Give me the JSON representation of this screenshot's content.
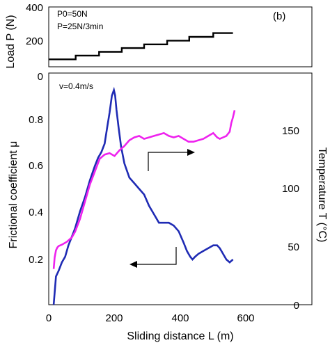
{
  "chart_data": [
    {
      "type": "line",
      "panel_label": "(b)",
      "ylabel": "Load P (N)",
      "ylim": [
        0,
        400
      ],
      "yticks": [
        "400",
        "200",
        "0"
      ],
      "xlim": [
        0,
        800
      ],
      "annotations": [
        "P0=50N",
        "P=25N/3min"
      ],
      "series": [
        {
          "color": "#000000",
          "x": [
            0,
            82,
            82,
            153,
            153,
            222,
            222,
            290,
            290,
            360,
            360,
            427,
            427,
            500,
            500,
            560
          ],
          "y": [
            50,
            50,
            75,
            75,
            100,
            100,
            125,
            125,
            150,
            150,
            175,
            175,
            200,
            200,
            225,
            225
          ]
        }
      ]
    },
    {
      "type": "line",
      "xlabel": "Sliding distance L (m)",
      "xlim": [
        0,
        800
      ],
      "xticks": [
        "0",
        "200",
        "400",
        "600"
      ],
      "ylabel_left": "Frictional coefficient μ",
      "ylim_left": [
        0.1,
        0.92
      ],
      "yticks_left": [
        "0.8",
        "0.6",
        "0.4",
        "0.2"
      ],
      "ylabel_right": "Temperature T (°C)",
      "ylim_right": [
        0,
        162
      ],
      "yticks_right": [
        "150",
        "100",
        "50",
        "0"
      ],
      "annotations": [
        "v=0.4m/s"
      ],
      "series": [
        {
          "axis": "left",
          "color": "#1f2bb4",
          "x": [
            15,
            22,
            30,
            40,
            50,
            60,
            70,
            80,
            95,
            110,
            125,
            140,
            150,
            160,
            170,
            178,
            185,
            192,
            198,
            202,
            206,
            212,
            220,
            230,
            245,
            260,
            275,
            290,
            305,
            320,
            335,
            350,
            365,
            380,
            395,
            410,
            420,
            430,
            437,
            445,
            455,
            470,
            485,
            500,
            512,
            520,
            530,
            540,
            550,
            560
          ],
          "y": [
            0.1,
            0.2,
            0.22,
            0.25,
            0.27,
            0.31,
            0.34,
            0.37,
            0.43,
            0.48,
            0.54,
            0.59,
            0.62,
            0.64,
            0.67,
            0.73,
            0.78,
            0.84,
            0.86,
            0.84,
            0.79,
            0.73,
            0.66,
            0.6,
            0.55,
            0.53,
            0.51,
            0.49,
            0.45,
            0.42,
            0.39,
            0.39,
            0.39,
            0.38,
            0.36,
            0.32,
            0.29,
            0.27,
            0.26,
            0.27,
            0.28,
            0.29,
            0.3,
            0.31,
            0.31,
            0.3,
            0.28,
            0.26,
            0.25,
            0.26
          ]
        },
        {
          "axis": "right",
          "color": "#ee22ee",
          "x": [
            15,
            18,
            22,
            26,
            30,
            40,
            55,
            70,
            80,
            95,
            110,
            125,
            140,
            155,
            170,
            185,
            200,
            215,
            230,
            245,
            260,
            275,
            290,
            305,
            320,
            335,
            350,
            365,
            380,
            395,
            410,
            425,
            440,
            455,
            470,
            485,
            500,
            512,
            520,
            530,
            540,
            550,
            555,
            560,
            565
          ],
          "y": [
            25,
            33,
            38,
            40,
            41,
            42,
            44,
            47,
            51,
            60,
            72,
            84,
            93,
            102,
            105,
            106,
            104,
            108,
            111,
            115,
            117,
            118,
            116,
            117,
            118,
            119,
            120,
            118,
            117,
            118,
            116,
            114,
            114,
            115,
            116,
            118,
            120,
            117,
            116,
            117,
            118,
            121,
            127,
            131,
            136
          ]
        }
      ]
    }
  ]
}
